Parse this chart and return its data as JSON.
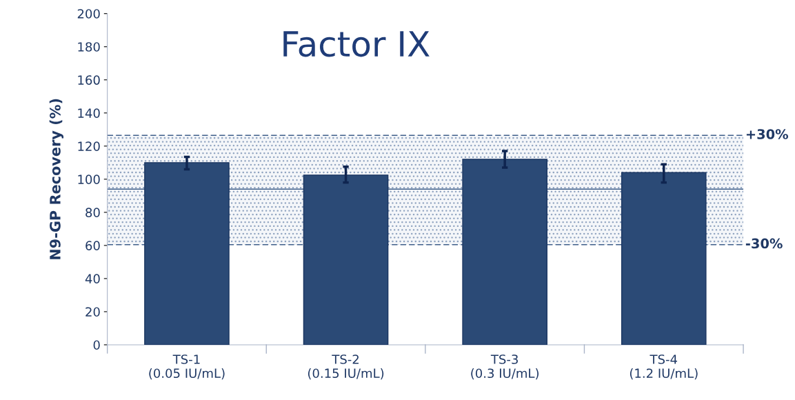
{
  "chart_data": {
    "type": "bar",
    "title": "Factor IX",
    "ylabel": "N9-GP Recovery (%)",
    "categories": [
      "TS-1\n(0.05 IU/mL)",
      "TS-2\n(0.15 IU/mL)",
      "TS-3\n(0.3 IU/mL)",
      "TS-4\n(1.2 IU/mL)"
    ],
    "values": [
      110,
      102.5,
      112,
      104
    ],
    "errors": [
      [
        106,
        113.5
      ],
      [
        98,
        107.5
      ],
      [
        107,
        117
      ],
      [
        98,
        109
      ]
    ],
    "color": "#2b4a76",
    "ylim": [
      0,
      200
    ],
    "yticks": [
      0,
      20,
      40,
      60,
      80,
      100,
      120,
      140,
      160,
      180,
      200
    ],
    "ref_lines": [
      {
        "axis": "y",
        "value": 126.5,
        "label": null,
        "color": "#3f5f8a",
        "line_style": "dashed"
      },
      {
        "axis": "y",
        "value": 60.5,
        "label": null,
        "color": "#3f5f8a",
        "line_style": "dashed"
      },
      {
        "axis": "y",
        "value": 94,
        "label": null,
        "color": "#3f5f8a",
        "line_style": "solid"
      }
    ],
    "bands": [
      {
        "axis": "y",
        "from": 60.5,
        "to": 126.5,
        "label": null,
        "color": "#8fa3c0"
      }
    ],
    "annotations": [
      "+30%",
      "-30%"
    ],
    "grid": false,
    "legend": false
  }
}
